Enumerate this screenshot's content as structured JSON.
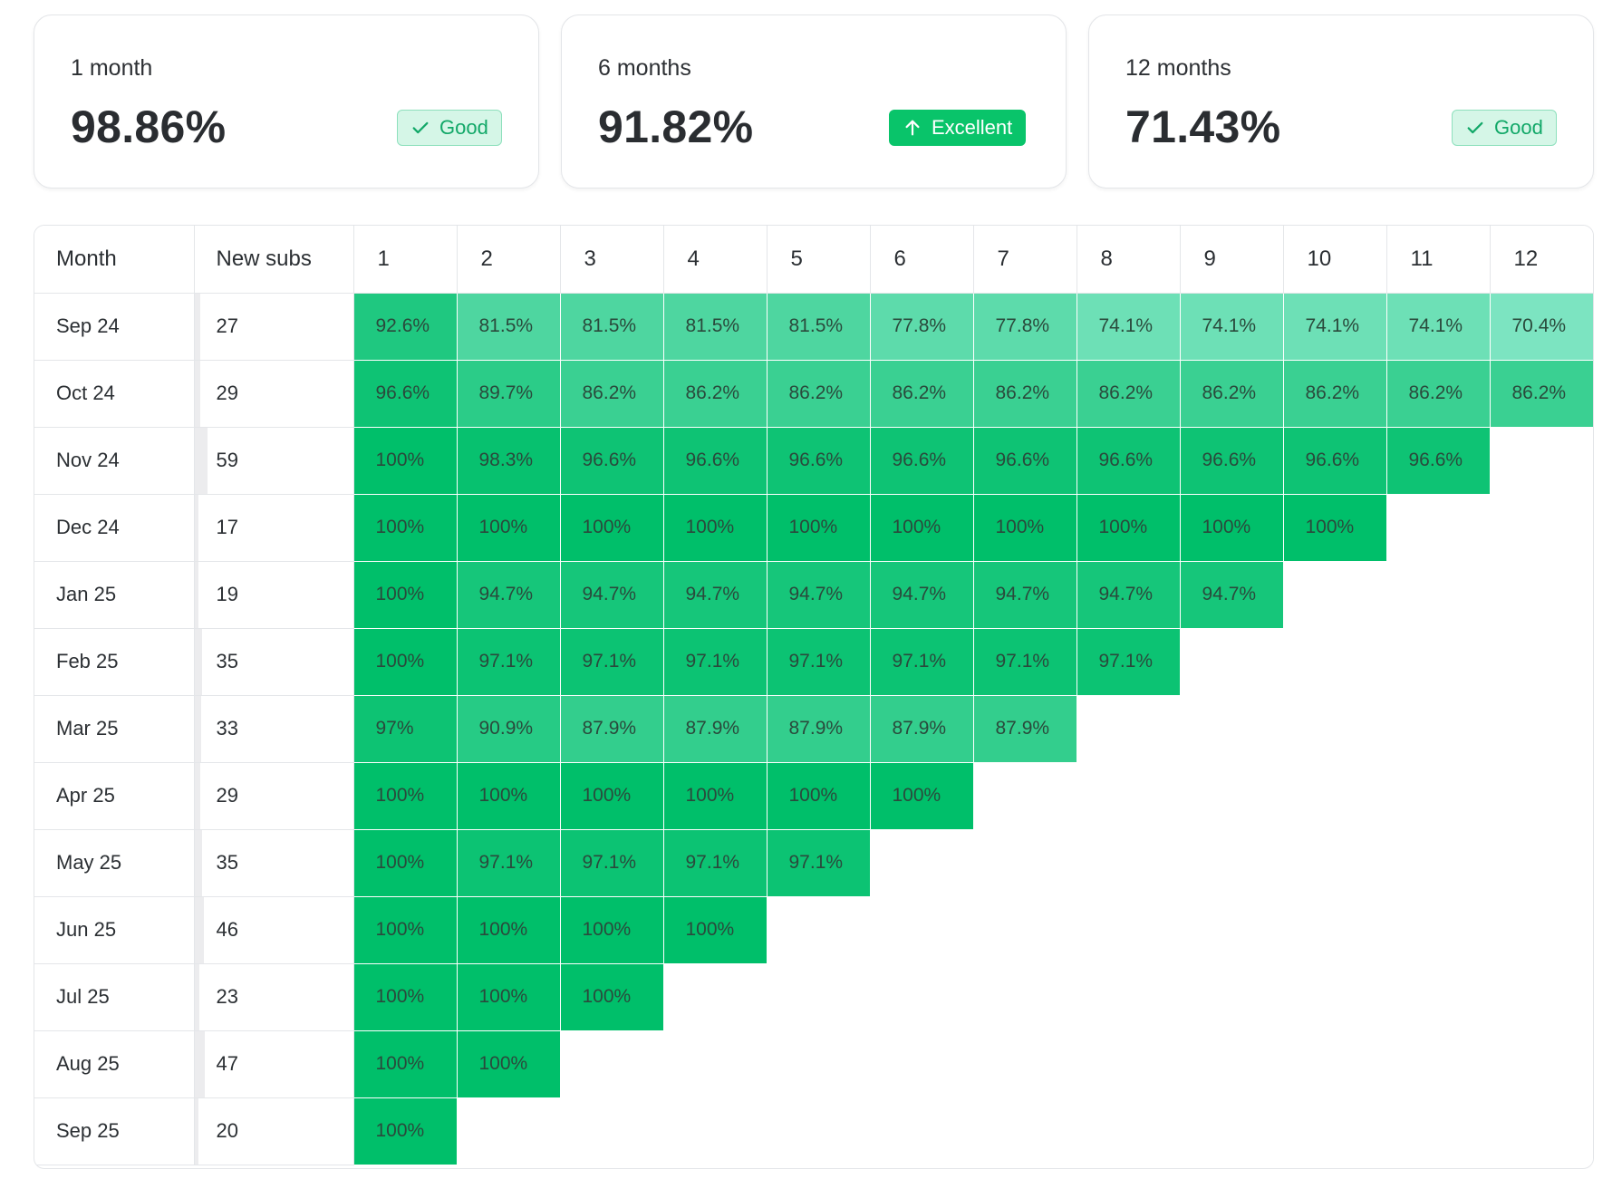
{
  "cards": [
    {
      "label": "1 month",
      "value": "98.86%",
      "badge": "Good",
      "badge_type": "good",
      "badge_icon": "check-icon"
    },
    {
      "label": "6 months",
      "value": "91.82%",
      "badge": "Excellent",
      "badge_type": "excellent",
      "badge_icon": "arrow-up-icon"
    },
    {
      "label": "12 months",
      "value": "71.43%",
      "badge": "Good",
      "badge_type": "good",
      "badge_icon": "check-icon"
    }
  ],
  "colors": {
    "good_bg": "#d5f6e7",
    "good_text": "#12a868",
    "excellent_bg": "#09c46a",
    "retention_high": "#00bf6a",
    "retention_low": "#7ee5c2"
  },
  "table": {
    "headers": [
      "Month",
      "New subs",
      "1",
      "2",
      "3",
      "4",
      "5",
      "6",
      "7",
      "8",
      "9",
      "10",
      "11",
      "12"
    ],
    "max_subs": 59,
    "rows": [
      {
        "month": "Sep 24",
        "subs": 27,
        "values": [
          "92.6%",
          "81.5%",
          "81.5%",
          "81.5%",
          "81.5%",
          "77.8%",
          "77.8%",
          "74.1%",
          "74.1%",
          "74.1%",
          "74.1%",
          "70.4%"
        ]
      },
      {
        "month": "Oct 24",
        "subs": 29,
        "values": [
          "96.6%",
          "89.7%",
          "86.2%",
          "86.2%",
          "86.2%",
          "86.2%",
          "86.2%",
          "86.2%",
          "86.2%",
          "86.2%",
          "86.2%",
          "86.2%"
        ]
      },
      {
        "month": "Nov 24",
        "subs": 59,
        "values": [
          "100%",
          "98.3%",
          "96.6%",
          "96.6%",
          "96.6%",
          "96.6%",
          "96.6%",
          "96.6%",
          "96.6%",
          "96.6%",
          "96.6%"
        ]
      },
      {
        "month": "Dec 24",
        "subs": 17,
        "values": [
          "100%",
          "100%",
          "100%",
          "100%",
          "100%",
          "100%",
          "100%",
          "100%",
          "100%",
          "100%"
        ]
      },
      {
        "month": "Jan 25",
        "subs": 19,
        "values": [
          "100%",
          "94.7%",
          "94.7%",
          "94.7%",
          "94.7%",
          "94.7%",
          "94.7%",
          "94.7%",
          "94.7%"
        ]
      },
      {
        "month": "Feb 25",
        "subs": 35,
        "values": [
          "100%",
          "97.1%",
          "97.1%",
          "97.1%",
          "97.1%",
          "97.1%",
          "97.1%",
          "97.1%"
        ]
      },
      {
        "month": "Mar 25",
        "subs": 33,
        "values": [
          "97%",
          "90.9%",
          "87.9%",
          "87.9%",
          "87.9%",
          "87.9%",
          "87.9%"
        ]
      },
      {
        "month": "Apr 25",
        "subs": 29,
        "values": [
          "100%",
          "100%",
          "100%",
          "100%",
          "100%",
          "100%"
        ]
      },
      {
        "month": "May 25",
        "subs": 35,
        "values": [
          "100%",
          "97.1%",
          "97.1%",
          "97.1%",
          "97.1%"
        ]
      },
      {
        "month": "Jun 25",
        "subs": 46,
        "values": [
          "100%",
          "100%",
          "100%",
          "100%"
        ]
      },
      {
        "month": "Jul 25",
        "subs": 23,
        "values": [
          "100%",
          "100%",
          "100%"
        ]
      },
      {
        "month": "Aug 25",
        "subs": 47,
        "values": [
          "100%",
          "100%"
        ]
      },
      {
        "month": "Sep 25",
        "subs": 20,
        "values": [
          "100%"
        ]
      }
    ]
  }
}
